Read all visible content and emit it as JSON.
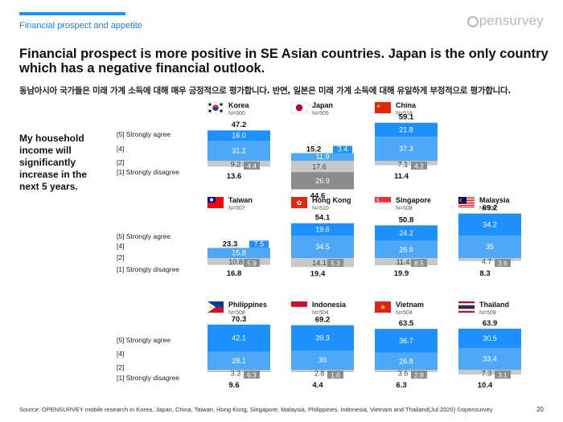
{
  "header": {
    "section_label": "Financial prospect and appetite",
    "logo_text": "pensurvey",
    "headline": "Financial prospect is more positive in SE Asian countries. Japan is the only country which has a negative financial outlook.",
    "subhead": "동남아시아 국가들은 미래 가계 소득에 대해 매우 긍정적으로 평가합니다. 반면, 일본은 미래 가계 소득에 대해 유일하게 부정적으로 평가합니다."
  },
  "question": "My household income will significantly increase in the next 5 years.",
  "footer": {
    "source": "Source: OPENSURVEY mobile research in Korea, Japan, China, Taiwan, Hong Kong, Singapore, Malaysia, Philippines, Indonesia, Vietnam and Thailand(Jul.2020) ©opensurvey",
    "page": "20"
  },
  "colors": {
    "strongly_agree": "#1e90ff",
    "agree": "#4da9f8",
    "disagree": "#c8c8c8",
    "strongly_disagree": "#8c8c8c",
    "accent": "#1e90ff"
  },
  "chart_data": {
    "type": "bar",
    "subtype": "diverging-stacked",
    "legend": [
      "[5] Strongly agree",
      "[4]",
      "[2]",
      "[1] Strongly disagree"
    ],
    "countries": [
      {
        "name": "Korea",
        "n": "N=500",
        "flag": "korea-flag",
        "s5": "16.0",
        "s4": "31.2",
        "s2": "9.2",
        "s1": "4.4",
        "top": "47.2",
        "bottom": "13.6"
      },
      {
        "name": "Japan",
        "n": "N=505",
        "flag": "japan-flag",
        "s5": "3.4",
        "s4": "11.9",
        "s2": "17.6",
        "s1": "26.9",
        "top": "15.2",
        "bottom": "44.6"
      },
      {
        "name": "China",
        "n": "N=518",
        "flag": "china-flag",
        "s5": "21.8",
        "s4": "37.3",
        "s2": "7.1",
        "s1": "4.2",
        "top": "59.1",
        "bottom": "11.4"
      },
      {
        "name": "Taiwan",
        "n": "N=507",
        "flag": "taiwan-flag",
        "s5": "7.5",
        "s4": "15.8",
        "s2": "10.8",
        "s1": "5.9",
        "top": "23.3",
        "bottom": "16.8"
      },
      {
        "name": "Hong Kong",
        "n": "N=510",
        "flag": "hongkong-flag",
        "s5": "19.6",
        "s4": "34.5",
        "s2": "14.1",
        "s1": "5.3",
        "top": "54.1",
        "bottom": "19.4"
      },
      {
        "name": "Singapore",
        "n": "N=508",
        "flag": "singapore-flag",
        "s5": "24.2",
        "s4": "26.6",
        "s2": "11.4",
        "s1": "8.5",
        "top": "50.8",
        "bottom": "19.9"
      },
      {
        "name": "Malaysia",
        "n": "N=506",
        "flag": "malaysia-flag",
        "s5": "34.2",
        "s4": "35",
        "s2": "4.7",
        "s1": "3.6",
        "top": "69.2",
        "bottom": "8.3"
      },
      {
        "name": "Philippines",
        "n": "N=508",
        "flag": "philippines-flag",
        "s5": "42.1",
        "s4": "28.1",
        "s2": "3.3",
        "s1": "6.3",
        "top": "70.3",
        "bottom": "9.6"
      },
      {
        "name": "Indonesia",
        "n": "N=504",
        "flag": "indonesia-flag",
        "s5": "39.3",
        "s4": "30",
        "s2": "2.8",
        "s1": "1.6",
        "top": "69.2",
        "bottom": "4.4"
      },
      {
        "name": "Vietnam",
        "n": "N=504",
        "flag": "vietnam-flag",
        "s5": "36.7",
        "s4": "26.8",
        "s2": "3.6",
        "s1": "2.8",
        "top": "63.5",
        "bottom": "6.3"
      },
      {
        "name": "Thailand",
        "n": "N=509",
        "flag": "thailand-flag",
        "s5": "30.5",
        "s4": "33.4",
        "s2": "7.3",
        "s1": "3.1",
        "top": "63.9",
        "bottom": "10.4"
      }
    ]
  }
}
